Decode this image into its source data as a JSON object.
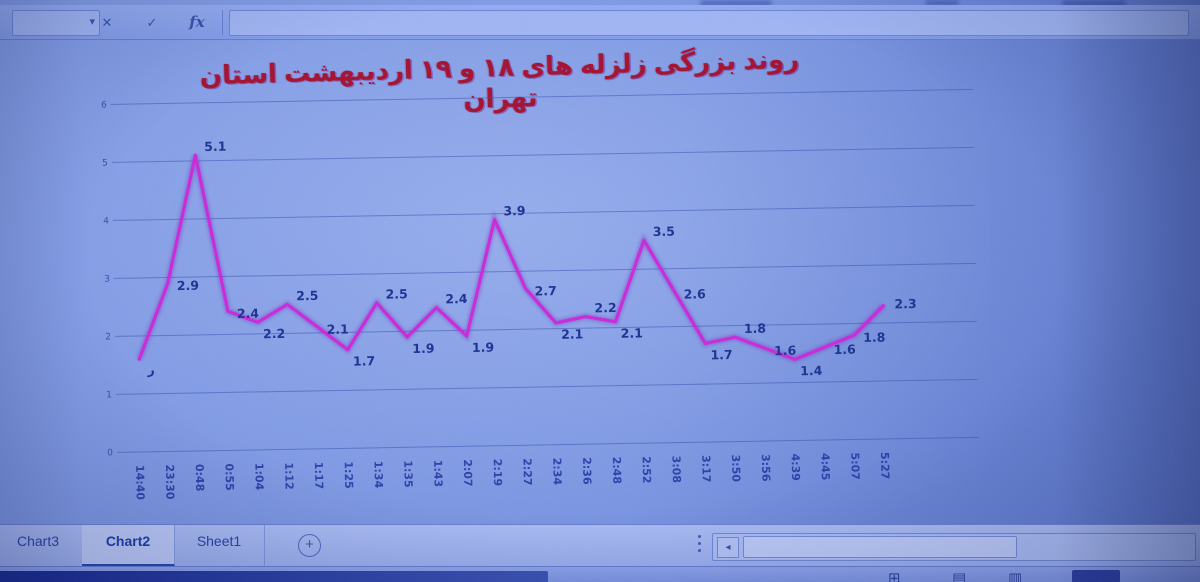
{
  "formula_bar": {
    "name_box_value": "",
    "name_box_arrow": "▾",
    "cancel_label": "✕",
    "enter_label": "✓",
    "function_label": "fx",
    "formula_value": ""
  },
  "chart_data": {
    "type": "line",
    "title": "روند بزرگی زلزله های ۱۸ و ۱۹ اردیبهشت استان تهران",
    "x": [
      "14:40",
      "23:30",
      "0:48",
      "0:55",
      "1:04",
      "1:12",
      "1:17",
      "1:25",
      "1:34",
      "1:35",
      "1:43",
      "2:07",
      "2:19",
      "2:27",
      "2:34",
      "2:36",
      "2:48",
      "2:52",
      "3:08",
      "3:17",
      "3:50",
      "3:56",
      "4:39",
      "4:45",
      "5:07",
      "5:27"
    ],
    "values": [
      1.6,
      2.9,
      5.1,
      2.4,
      2.2,
      2.5,
      2.1,
      1.7,
      2.5,
      1.9,
      2.4,
      1.9,
      3.9,
      2.7,
      2.1,
      2.2,
      2.1,
      3.5,
      2.6,
      1.7,
      1.8,
      1.6,
      1.4,
      1.6,
      1.8,
      2.3
    ],
    "point_labels": [
      "ر",
      "2.9",
      "5.1",
      "2.4",
      "2.2",
      "2.5",
      "2.1",
      "1.7",
      "2.5",
      "1.9",
      "2.4",
      "1.9",
      "3.9",
      "2.7",
      "2.1",
      "2.2",
      "2.1",
      "3.5",
      "2.6",
      "1.7",
      "1.8",
      "1.6",
      "1.4",
      "1.6",
      "1.8",
      "2.3"
    ],
    "xlabel": "",
    "ylabel": "",
    "ylim": [
      0,
      6
    ],
    "yticks": [
      0,
      1,
      2,
      3,
      4,
      5,
      6
    ],
    "grid": true,
    "legend": false,
    "line_color": "#c62bd6",
    "label_color": "#1e318f",
    "title_color": "#a01330"
  },
  "sheet_tabs": {
    "tabs": [
      {
        "label": "Chart3",
        "active": false
      },
      {
        "label": "Chart2",
        "active": true
      },
      {
        "label": "Sheet1",
        "active": false
      }
    ],
    "add_label": "+"
  },
  "scrollbar": {
    "left_arrow": "◂"
  },
  "status_bar": {
    "icons": [
      {
        "name": "normal-view-icon",
        "glyph": "⊞"
      },
      {
        "name": "page-layout-icon",
        "glyph": "▤"
      },
      {
        "name": "page-break-icon",
        "glyph": "▥"
      }
    ]
  }
}
